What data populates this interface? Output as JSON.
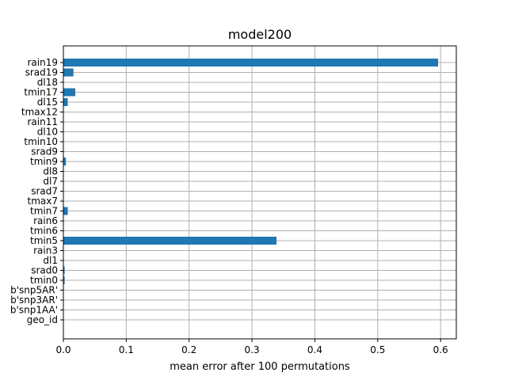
{
  "chart_data": {
    "type": "bar",
    "orientation": "horizontal",
    "title": "model200",
    "xlabel": "mean error after 100 permutations",
    "ylabel": "",
    "xlim": [
      0,
      0.625
    ],
    "xticks": [
      0.0,
      0.1,
      0.2,
      0.3,
      0.4,
      0.5,
      0.6
    ],
    "xtick_labels": [
      "0.0",
      "0.1",
      "0.2",
      "0.3",
      "0.4",
      "0.5",
      "0.6"
    ],
    "grid": true,
    "bar_color": "#1f77b4",
    "categories": [
      "rain19",
      "srad19",
      "dl18",
      "tmin17",
      "dl15",
      "tmax12",
      "rain11",
      "dl10",
      "tmin10",
      "srad9",
      "tmin9",
      "dl8",
      "dl7",
      "srad7",
      "tmax7",
      "tmin7",
      "rain6",
      "tmin6",
      "tmin5",
      "rain3",
      "dl1",
      "srad0",
      "tmin0",
      "b'snp5AR'",
      "b'snp3AR'",
      "b'snp1AA'",
      "geo_id"
    ],
    "values": [
      0.596,
      0.016,
      0.0,
      0.019,
      0.007,
      0.0,
      0.0,
      0.0,
      0.0,
      0.0,
      0.004,
      0.0,
      0.0,
      0.0,
      0.0,
      0.007,
      0.0,
      0.0,
      0.339,
      0.0,
      0.0,
      0.002,
      0.002,
      0.0,
      0.0,
      0.0,
      0.0
    ]
  }
}
